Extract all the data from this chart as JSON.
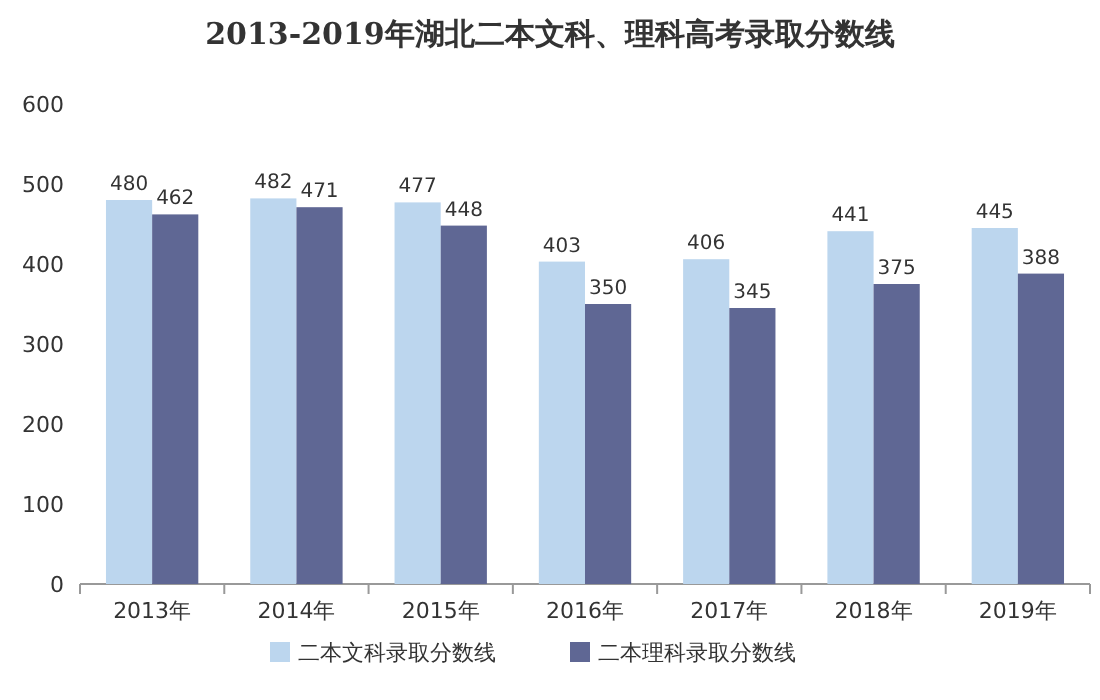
{
  "chart_data": {
    "type": "bar",
    "title": "2013-2019年湖北二本文科、理科高考录取分数线",
    "categories": [
      "2013年",
      "2014年",
      "2015年",
      "2016年",
      "2017年",
      "2018年",
      "2019年"
    ],
    "series": [
      {
        "name": "二本文科录取分数线",
        "color": "#bcd6ee",
        "values": [
          480,
          482,
          477,
          403,
          406,
          441,
          445
        ]
      },
      {
        "name": "二本理科录取分数线",
        "color": "#5f6794",
        "values": [
          462,
          471,
          448,
          350,
          345,
          375,
          388
        ]
      }
    ],
    "ylim": [
      0,
      600
    ],
    "yticks": [
      0,
      100,
      200,
      300,
      400,
      500,
      600
    ],
    "data_labels": true,
    "legend": "bottom"
  }
}
